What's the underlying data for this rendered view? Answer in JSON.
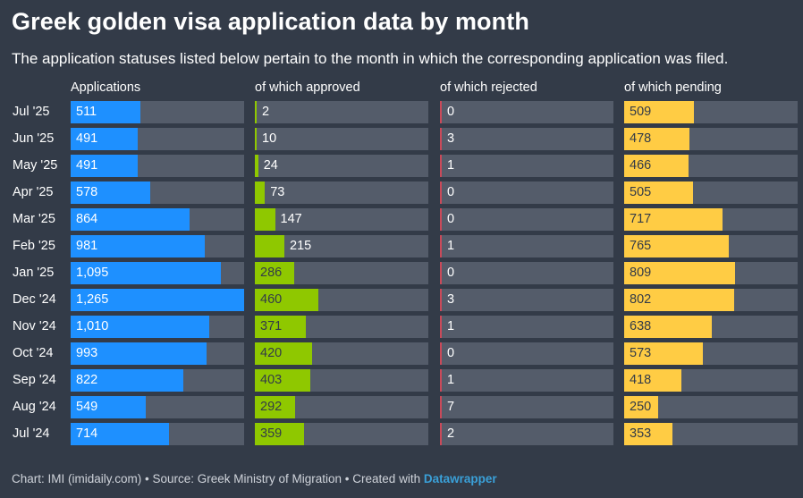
{
  "title": "Greek golden visa application data by month",
  "subtitle": "The application statuses listed below pertain to the month in which the corresponding application was filed.",
  "footer": {
    "text": "Chart: IMI (imidaily.com) • Source: Greek Ministry of Migration • Created with ",
    "brand": "Datawrapper"
  },
  "chart_data": {
    "type": "bar",
    "categories": [
      "Jul '25",
      "Jun '25",
      "May '25",
      "Apr '25",
      "Mar '25",
      "Feb '25",
      "Jan '25",
      "Dec '24",
      "Nov '24",
      "Oct '24",
      "Sep '24",
      "Aug '24",
      "Jul '24"
    ],
    "series": [
      {
        "name": "Applications",
        "color": "#1e90ff",
        "values": [
          511,
          491,
          491,
          578,
          864,
          981,
          1095,
          1265,
          1010,
          993,
          822,
          549,
          714
        ],
        "labels": [
          "511",
          "491",
          "491",
          "578",
          "864",
          "981",
          "1,095",
          "1,265",
          "1,010",
          "993",
          "822",
          "549",
          "714"
        ]
      },
      {
        "name": "of which approved",
        "color": "#8fc800",
        "values": [
          2,
          10,
          24,
          73,
          147,
          215,
          286,
          460,
          371,
          420,
          403,
          292,
          359
        ],
        "labels": [
          "2",
          "10",
          "24",
          "73",
          "147",
          "215",
          "286",
          "460",
          "371",
          "420",
          "403",
          "292",
          "359"
        ]
      },
      {
        "name": "of which rejected",
        "color": "#c94a5a",
        "values": [
          0,
          3,
          1,
          0,
          0,
          1,
          0,
          3,
          1,
          0,
          1,
          7,
          2
        ],
        "labels": [
          "0",
          "3",
          "1",
          "0",
          "0",
          "1",
          "0",
          "3",
          "1",
          "0",
          "1",
          "7",
          "2"
        ]
      },
      {
        "name": "of which pending",
        "color": "#ffcc44",
        "values": [
          509,
          478,
          466,
          505,
          717,
          765,
          809,
          802,
          638,
          573,
          418,
          250,
          353
        ],
        "labels": [
          "509",
          "478",
          "466",
          "505",
          "717",
          "765",
          "809",
          "802",
          "638",
          "573",
          "418",
          "250",
          "353"
        ]
      }
    ],
    "xlim": [
      0,
      1265
    ]
  }
}
